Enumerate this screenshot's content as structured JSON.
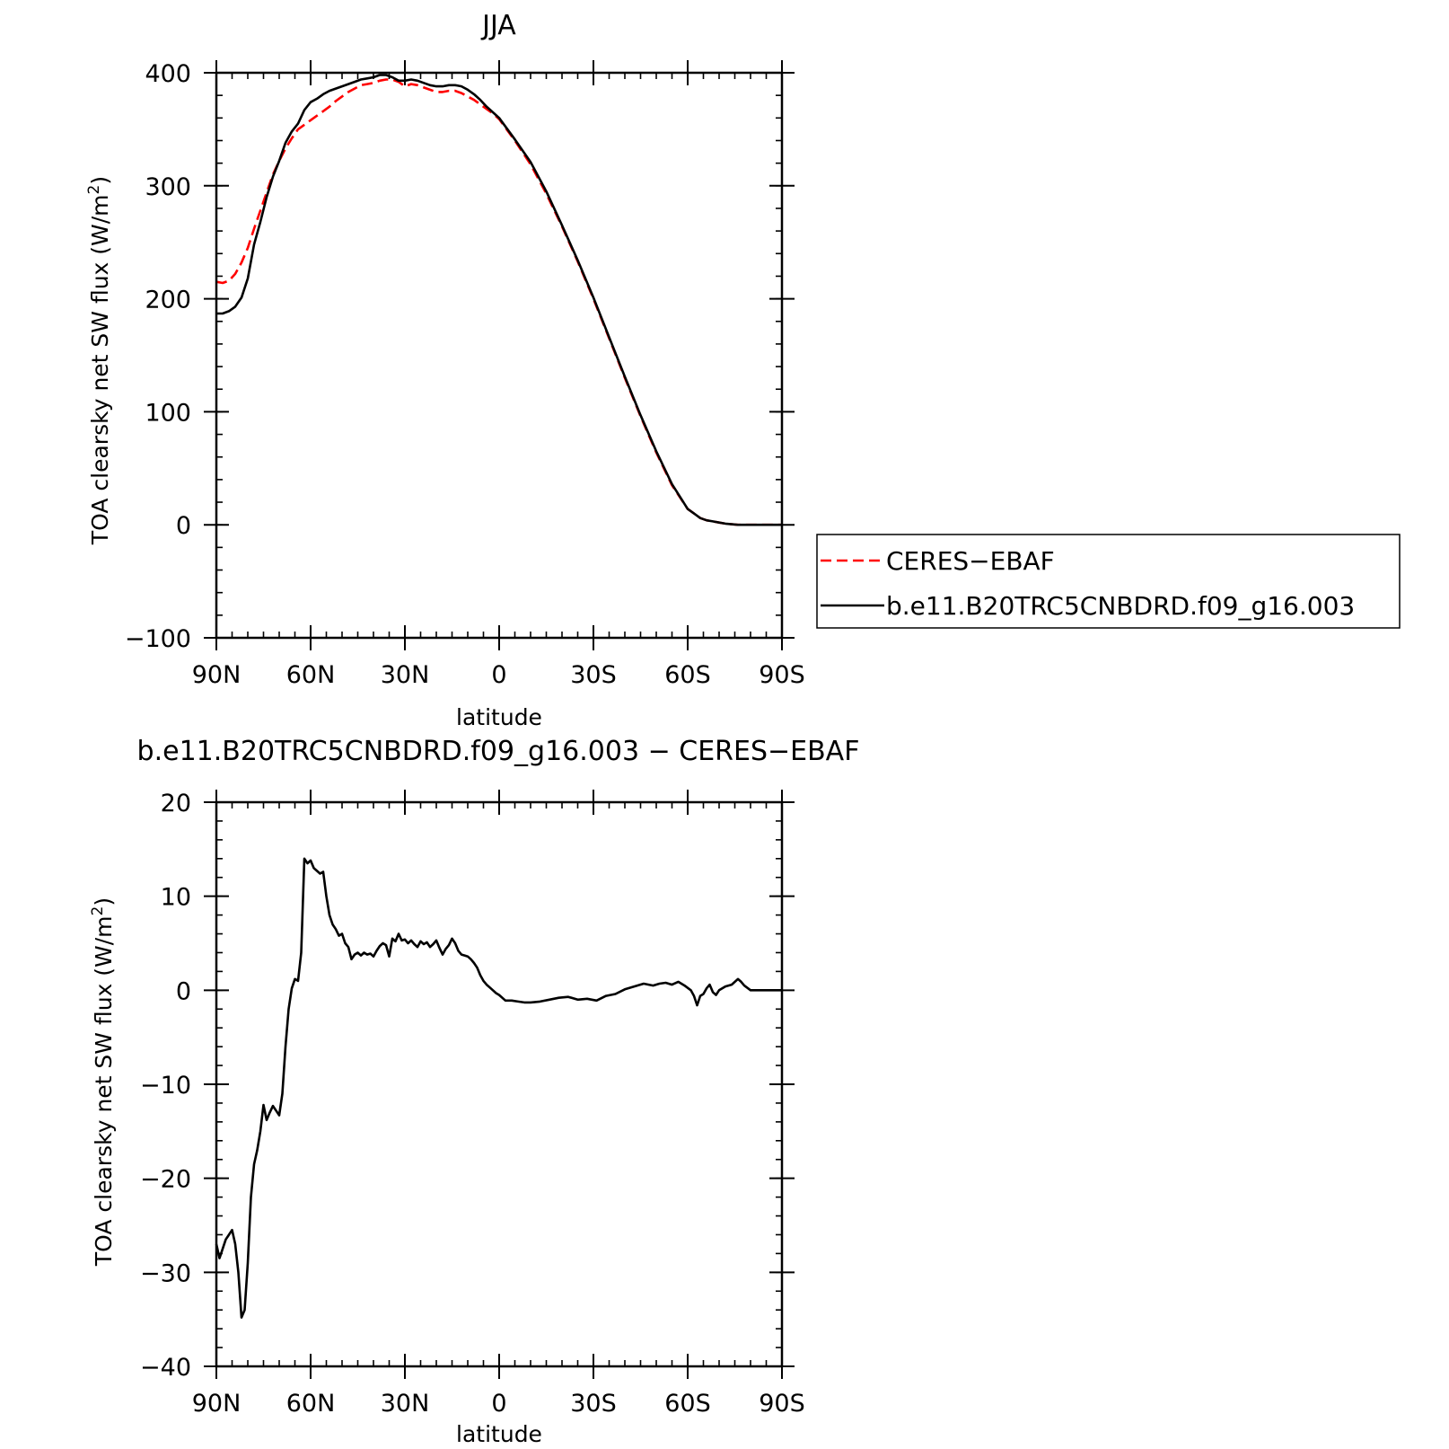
{
  "chart_data": [
    {
      "type": "line",
      "title": "JJA",
      "xlabel": "latitude",
      "ylabel_main": "TOA clearsky net SW flux (W/m",
      "ylabel_sup": "2",
      "ylabel_close": ")",
      "xlim": [
        90,
        -90
      ],
      "ylim": [
        -100,
        400
      ],
      "x_ticks": [
        90,
        60,
        30,
        0,
        -30,
        -60,
        -90
      ],
      "x_tick_labels": [
        "90N",
        "60N",
        "30N",
        "0",
        "30S",
        "60S",
        "90S"
      ],
      "y_ticks": [
        -100,
        0,
        100,
        200,
        300,
        400
      ],
      "y_tick_labels": [
        "−100",
        "0",
        "100",
        "200",
        "300",
        "400"
      ],
      "legend": {
        "placement": "right",
        "entries": [
          {
            "label": "CERES−EBAF",
            "color": "#ff0000",
            "dash": "dashed"
          },
          {
            "label": "b.e11.B20TRC5CNBDRD.f09_g16.003",
            "color": "#000000",
            "dash": "solid"
          }
        ]
      },
      "series": [
        {
          "name": "CERES−EBAF",
          "color": "#ff0000",
          "dash": "dashed",
          "x": [
            90,
            88,
            86,
            84,
            82,
            80,
            78,
            76,
            74,
            72,
            70,
            68,
            66,
            64,
            62,
            60,
            58,
            56,
            54,
            52,
            50,
            48,
            46,
            44,
            42,
            40,
            38,
            36,
            34,
            32,
            30,
            28,
            26,
            24,
            22,
            20,
            18,
            16,
            14,
            12,
            10,
            8,
            6,
            4,
            2,
            0,
            -5,
            -10,
            -15,
            -20,
            -25,
            -30,
            -35,
            -40,
            -45,
            -50,
            -55,
            -60,
            -62,
            -64,
            -66,
            -68,
            -70,
            -72,
            -74,
            -76,
            -78,
            -80,
            -84,
            -90
          ],
          "y": [
            215,
            214,
            216,
            222,
            232,
            245,
            262,
            278,
            294,
            310,
            322,
            333,
            342,
            350,
            354,
            358,
            362,
            366,
            370,
            375,
            379,
            383,
            386,
            389,
            390,
            391,
            393,
            394,
            394,
            392,
            388,
            390,
            389,
            387,
            385,
            383,
            383,
            384,
            384,
            382,
            379,
            376,
            372,
            368,
            364,
            359,
            340,
            319,
            293,
            264,
            233,
            200,
            165,
            130,
            96,
            64,
            35,
            14,
            10,
            6,
            4,
            3,
            2,
            1,
            0.5,
            0,
            0,
            0,
            0,
            0
          ]
        },
        {
          "name": "b.e11.B20TRC5CNBDRD.f09_g16.003",
          "color": "#000000",
          "dash": "solid",
          "x": [
            90,
            88,
            86,
            84,
            82,
            80,
            78,
            76,
            74,
            72,
            70,
            68,
            66,
            64,
            62,
            60,
            58,
            56,
            54,
            52,
            50,
            48,
            46,
            44,
            42,
            40,
            38,
            36,
            34,
            32,
            30,
            28,
            26,
            24,
            22,
            20,
            18,
            16,
            14,
            12,
            10,
            8,
            6,
            4,
            2,
            0,
            -5,
            -10,
            -15,
            -20,
            -25,
            -30,
            -35,
            -40,
            -45,
            -50,
            -55,
            -60,
            -62,
            -64,
            -66,
            -68,
            -70,
            -72,
            -74,
            -76,
            -78,
            -80,
            -84,
            -90
          ],
          "y": [
            187,
            187,
            189,
            193,
            201,
            218,
            248,
            268,
            290,
            308,
            322,
            338,
            348,
            355,
            367,
            374,
            377,
            381,
            384,
            386,
            388,
            390,
            392,
            394,
            395,
            396,
            398,
            398,
            396,
            393,
            393,
            394,
            393,
            391,
            389,
            388,
            388,
            389,
            389,
            388,
            385,
            381,
            376,
            370,
            365,
            360,
            341,
            321,
            295,
            265,
            234,
            201,
            166,
            131,
            97,
            65,
            36,
            14,
            10,
            6,
            4,
            3,
            2,
            1,
            0.5,
            0,
            0,
            0,
            0,
            0
          ]
        }
      ]
    },
    {
      "type": "line",
      "title": "b.e11.B20TRC5CNBDRD.f09_g16.003 − CERES−EBAF",
      "xlabel": "latitude",
      "ylabel_main": "TOA clearsky net SW flux (W/m",
      "ylabel_sup": "2",
      "ylabel_close": ")",
      "xlim": [
        90,
        -90
      ],
      "ylim": [
        -40,
        20
      ],
      "x_ticks": [
        90,
        60,
        30,
        0,
        -30,
        -60,
        -90
      ],
      "x_tick_labels": [
        "90N",
        "60N",
        "30N",
        "0",
        "30S",
        "60S",
        "90S"
      ],
      "y_ticks": [
        -40,
        -30,
        -20,
        -10,
        0,
        10,
        20
      ],
      "y_tick_labels": [
        "−40",
        "−30",
        "−20",
        "−10",
        "0",
        "10",
        "20"
      ],
      "series": [
        {
          "color": "#000000",
          "dash": "solid",
          "x": [
            90,
            89,
            88,
            87,
            86,
            85,
            84,
            83,
            82,
            81,
            80,
            79,
            78,
            77,
            76,
            75,
            74,
            73,
            72,
            71,
            70,
            69,
            68,
            67,
            66,
            65,
            64,
            63,
            62,
            61,
            60,
            59,
            58,
            57,
            56,
            55,
            54,
            53,
            52,
            51,
            50,
            49,
            48,
            47,
            46,
            45,
            44,
            43,
            42,
            41,
            40,
            39,
            38,
            37,
            36,
            35,
            34,
            33,
            32,
            31,
            30,
            29,
            28,
            27,
            26,
            25,
            24,
            23,
            22,
            21,
            20,
            19,
            18,
            17,
            16,
            15,
            14,
            13,
            12,
            11,
            10,
            9,
            8,
            7,
            6,
            5,
            4,
            3,
            2,
            1,
            0,
            -2,
            -4,
            -6,
            -8,
            -10,
            -13,
            -16,
            -19,
            -22,
            -25,
            -28,
            -31,
            -34,
            -37,
            -40,
            -43,
            -46,
            -49,
            -51,
            -53,
            -55,
            -57,
            -59,
            -61,
            -62,
            -63,
            -64,
            -65,
            -66,
            -67,
            -68,
            -69,
            -70,
            -72,
            -74,
            -76,
            -77,
            -78,
            -80,
            -85,
            -90
          ],
          "y": [
            -27,
            -28.5,
            -27.5,
            -26.5,
            -26,
            -25.5,
            -27,
            -30,
            -34.8,
            -34,
            -29,
            -22,
            -18.5,
            -17,
            -15,
            -12.2,
            -13.8,
            -13,
            -12.3,
            -12.8,
            -13.3,
            -11,
            -6,
            -2,
            0.2,
            1.2,
            1,
            4,
            14,
            13.5,
            13.8,
            13,
            12.7,
            12.4,
            12.6,
            10,
            8,
            7,
            6.5,
            5.8,
            6,
            5,
            4.6,
            3.3,
            3.8,
            4,
            3.7,
            4,
            3.8,
            3.9,
            3.6,
            4.2,
            4.7,
            5,
            4.8,
            3.6,
            5.5,
            5.2,
            6,
            5.3,
            5.4,
            5,
            5.3,
            4.9,
            4.6,
            5.2,
            4.9,
            5.1,
            4.6,
            4.9,
            5.3,
            4.5,
            3.8,
            4.4,
            4.8,
            5.5,
            5,
            4.2,
            3.8,
            3.7,
            3.6,
            3.3,
            2.9,
            2.4,
            1.6,
            1,
            0.6,
            0.3,
            0,
            -0.3,
            -0.5,
            -1.1,
            -1.1,
            -1.2,
            -1.3,
            -1.3,
            -1.2,
            -1.0,
            -0.8,
            -0.7,
            -1.0,
            -0.9,
            -1.1,
            -0.6,
            -0.4,
            0.1,
            0.4,
            0.7,
            0.5,
            0.7,
            0.8,
            0.6,
            0.9,
            0.5,
            0,
            -0.6,
            -1.6,
            -0.6,
            -0.4,
            0.2,
            0.6,
            -0.2,
            -0.5,
            0,
            0.4,
            0.6,
            1.2,
            0.9,
            0.5,
            0,
            0,
            0
          ]
        }
      ]
    }
  ]
}
